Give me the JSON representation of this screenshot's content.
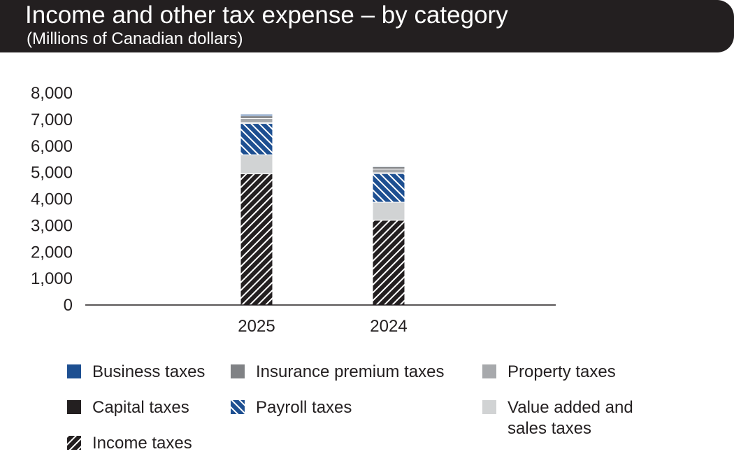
{
  "header": {
    "title": "Income and other tax expense – by category",
    "subtitle": "(Millions of Canadian dollars)"
  },
  "colors": {
    "banner": "#231f20",
    "business": "#1d4f91",
    "insurance": "#808285",
    "property": "#a7a9ac",
    "capital": "#231f20",
    "payroll": "#1d4f91",
    "value_added": "#d1d3d4",
    "income": "#231f20"
  },
  "chart_data": {
    "type": "bar",
    "stacked": true,
    "title": "Income and other tax expense – by category",
    "subtitle": "(Millions of Canadian dollars)",
    "xlabel": "",
    "ylabel": "",
    "ylim": [
      0,
      8000
    ],
    "yticks": [
      0,
      1000,
      2000,
      3000,
      4000,
      5000,
      6000,
      7000,
      8000
    ],
    "ytick_labels": [
      "0",
      "1,000",
      "2,000",
      "3,000",
      "4,000",
      "5,000",
      "6,000",
      "7,000",
      "8,000"
    ],
    "categories": [
      "2025",
      "2024"
    ],
    "grid": false,
    "legend_position": "bottom",
    "series": [
      {
        "name": "Income taxes",
        "key": "income",
        "values": [
          4950,
          3200
        ]
      },
      {
        "name": "Value added and sales taxes",
        "key": "value_added",
        "values": [
          720,
          680
        ]
      },
      {
        "name": "Payroll taxes",
        "key": "payroll",
        "values": [
          1180,
          1080
        ]
      },
      {
        "name": "Capital taxes",
        "key": "capital",
        "values": [
          30,
          30
        ]
      },
      {
        "name": "Property taxes",
        "key": "property",
        "values": [
          160,
          140
        ]
      },
      {
        "name": "Insurance premium taxes",
        "key": "insurance",
        "values": [
          100,
          90
        ]
      },
      {
        "name": "Business taxes",
        "key": "business",
        "values": [
          60,
          30
        ]
      }
    ]
  },
  "legend": {
    "items": [
      {
        "key": "business",
        "label": "Business taxes"
      },
      {
        "key": "insurance",
        "label": "Insurance premium taxes"
      },
      {
        "key": "property",
        "label": "Property taxes"
      },
      {
        "key": "capital",
        "label": "Capital taxes"
      },
      {
        "key": "payroll",
        "label": "Payroll taxes"
      },
      {
        "key": "value_added",
        "label": "Value added and\nsales taxes"
      },
      {
        "key": "income",
        "label": "Income taxes"
      }
    ]
  }
}
